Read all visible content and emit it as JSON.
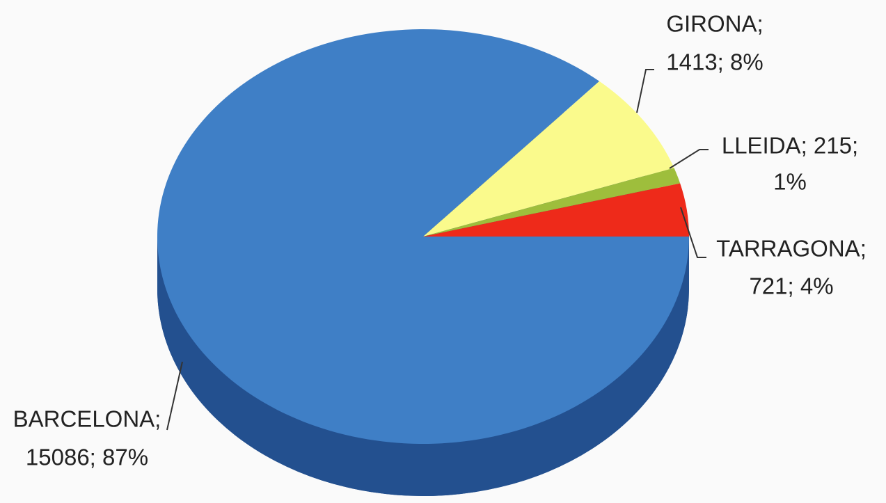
{
  "chart_data": {
    "type": "pie",
    "values": [
      15086,
      1413,
      215,
      721
    ],
    "value_labels": [
      [
        "BARCELONA;",
        "15086; 87%"
      ],
      [
        "GIRONA;",
        "1413; 8%"
      ],
      [
        "LLEIDA; 215;",
        "1%"
      ],
      [
        "TARRAGONA;",
        "721; 4%"
      ]
    ],
    "colors": [
      "#3f7fc6",
      "#fafa8c",
      "#9ebe3c",
      "#ee2a1a"
    ]
  }
}
